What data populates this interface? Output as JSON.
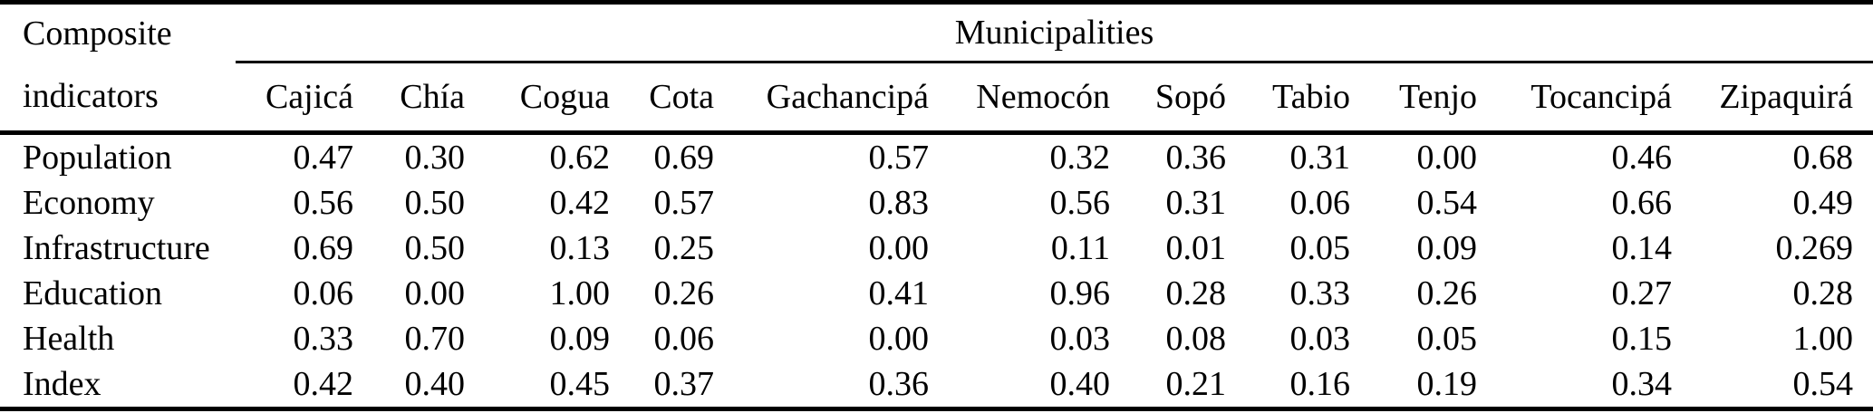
{
  "page": {
    "background_color": "#ffffff",
    "text_color": "#000000"
  },
  "table": {
    "stub_header": {
      "line1": "Composite",
      "line2": "indicators"
    },
    "span_header": "Municipalities",
    "columns": [
      "Cajicá",
      "Chía",
      "Cogua",
      "Cota",
      "Gachancipá",
      "Nemocón",
      "Sopó",
      "Tabio",
      "Tenjo",
      "Tocancipá",
      "Zipaquirá"
    ],
    "rows": [
      {
        "label": "Population",
        "values": [
          "0.47",
          "0.30",
          "0.62",
          "0.69",
          "0.57",
          "0.32",
          "0.36",
          "0.31",
          "0.00",
          "0.46",
          "0.68"
        ]
      },
      {
        "label": "Economy",
        "values": [
          "0.56",
          "0.50",
          "0.42",
          "0.57",
          "0.83",
          "0.56",
          "0.31",
          "0.06",
          "0.54",
          "0.66",
          "0.49"
        ]
      },
      {
        "label": "Infrastructure",
        "values": [
          "0.69",
          "0.50",
          "0.13",
          "0.25",
          "0.00",
          "0.11",
          "0.01",
          "0.05",
          "0.09",
          "0.14",
          "0.269"
        ]
      },
      {
        "label": "Education",
        "values": [
          "0.06",
          "0.00",
          "1.00",
          "0.26",
          "0.41",
          "0.96",
          "0.28",
          "0.33",
          "0.26",
          "0.27",
          "0.28"
        ]
      },
      {
        "label": "Health",
        "values": [
          "0.33",
          "0.70",
          "0.09",
          "0.06",
          "0.00",
          "0.03",
          "0.08",
          "0.03",
          "0.05",
          "0.15",
          "1.00"
        ]
      },
      {
        "label": "Index",
        "values": [
          "0.42",
          "0.40",
          "0.45",
          "0.37",
          "0.36",
          "0.40",
          "0.21",
          "0.16",
          "0.19",
          "0.34",
          "0.54"
        ]
      }
    ]
  }
}
